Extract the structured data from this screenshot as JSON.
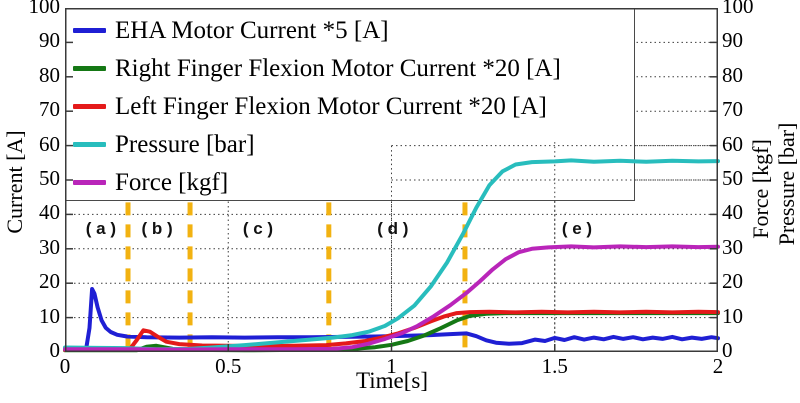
{
  "figure": {
    "background": "#ffffff"
  },
  "axes": {
    "left_title": "Current [A]",
    "right_title_force": "Force [kgf]",
    "right_title_pressure": "Pressure [bar]",
    "x_title": "Time[s]"
  },
  "chart_data": {
    "type": "line",
    "title": "",
    "xlabel": "Time[s]",
    "ylabel_left": "Current [A]",
    "ylabels_right": [
      "Force [kgf]",
      "Pressure [bar]"
    ],
    "xlim": [
      0,
      2
    ],
    "ylim": [
      0,
      100
    ],
    "x_ticks": [
      0,
      0.5,
      1,
      1.5,
      2
    ],
    "y_ticks": [
      0,
      10,
      20,
      30,
      40,
      50,
      60,
      70,
      80,
      90,
      100
    ],
    "grid": true,
    "grid_color": "#3d3d3d",
    "frame_color": "#3a3a3a",
    "legend_position": "upper-left",
    "series": [
      {
        "name": "EHA Motor Current *5 [A]",
        "color": "#1f1fd4",
        "points": [
          [
            0,
            0.6
          ],
          [
            0.05,
            0.6
          ],
          [
            0.065,
            1.0
          ],
          [
            0.075,
            7
          ],
          [
            0.083,
            18.3
          ],
          [
            0.09,
            17
          ],
          [
            0.1,
            13
          ],
          [
            0.112,
            9.2
          ],
          [
            0.125,
            7.0
          ],
          [
            0.14,
            5.8
          ],
          [
            0.16,
            5.0
          ],
          [
            0.19,
            4.5
          ],
          [
            0.25,
            4.3
          ],
          [
            0.35,
            4.2
          ],
          [
            0.45,
            4.3
          ],
          [
            0.55,
            4.2
          ],
          [
            0.65,
            4.3
          ],
          [
            0.75,
            4.3
          ],
          [
            0.85,
            4.4
          ],
          [
            0.95,
            4.5
          ],
          [
            1.05,
            4.7
          ],
          [
            1.12,
            4.9
          ],
          [
            1.18,
            5.2
          ],
          [
            1.23,
            5.4
          ],
          [
            1.26,
            4.6
          ],
          [
            1.29,
            3.4
          ],
          [
            1.32,
            2.7
          ],
          [
            1.36,
            2.4
          ],
          [
            1.4,
            2.6
          ],
          [
            1.44,
            3.6
          ],
          [
            1.47,
            3.2
          ],
          [
            1.5,
            4.1
          ],
          [
            1.53,
            3.5
          ],
          [
            1.56,
            4.3
          ],
          [
            1.59,
            3.6
          ],
          [
            1.62,
            4.2
          ],
          [
            1.65,
            3.7
          ],
          [
            1.68,
            4.4
          ],
          [
            1.71,
            3.8
          ],
          [
            1.74,
            4.3
          ],
          [
            1.77,
            3.7
          ],
          [
            1.8,
            4.2
          ],
          [
            1.83,
            3.8
          ],
          [
            1.86,
            4.4
          ],
          [
            1.89,
            3.7
          ],
          [
            1.92,
            4.2
          ],
          [
            1.95,
            3.8
          ],
          [
            1.98,
            4.3
          ],
          [
            2,
            4.0
          ]
        ]
      },
      {
        "name": "Right Finger Flexion Motor Current *20 [A]",
        "color": "#157815",
        "points": [
          [
            0,
            0.5
          ],
          [
            0.22,
            0.5
          ],
          [
            0.25,
            1.5
          ],
          [
            0.28,
            1.8
          ],
          [
            0.33,
            0.9
          ],
          [
            0.4,
            0.6
          ],
          [
            0.55,
            0.5
          ],
          [
            0.7,
            0.6
          ],
          [
            0.8,
            0.7
          ],
          [
            0.88,
            0.9
          ],
          [
            0.95,
            1.4
          ],
          [
            1.0,
            2.1
          ],
          [
            1.05,
            3.2
          ],
          [
            1.1,
            4.8
          ],
          [
            1.15,
            6.9
          ],
          [
            1.2,
            9.2
          ],
          [
            1.24,
            10.5
          ],
          [
            1.29,
            11.1
          ],
          [
            1.35,
            11.3
          ],
          [
            1.5,
            11.3
          ],
          [
            1.7,
            11.3
          ],
          [
            2,
            11.3
          ]
        ]
      },
      {
        "name": "Left Finger Flexion Motor Current *20 [A]",
        "color": "#e41a1a",
        "points": [
          [
            0,
            0.6
          ],
          [
            0.18,
            0.6
          ],
          [
            0.2,
            1.0
          ],
          [
            0.22,
            3.5
          ],
          [
            0.24,
            6.3
          ],
          [
            0.26,
            5.9
          ],
          [
            0.285,
            4.4
          ],
          [
            0.31,
            3.0
          ],
          [
            0.35,
            2.3
          ],
          [
            0.42,
            1.9
          ],
          [
            0.5,
            1.8
          ],
          [
            0.6,
            1.7
          ],
          [
            0.7,
            1.8
          ],
          [
            0.8,
            2.0
          ],
          [
            0.86,
            2.5
          ],
          [
            0.92,
            3.2
          ],
          [
            0.97,
            4.2
          ],
          [
            1.02,
            5.4
          ],
          [
            1.07,
            7.0
          ],
          [
            1.12,
            8.9
          ],
          [
            1.16,
            10.3
          ],
          [
            1.2,
            11.3
          ],
          [
            1.24,
            11.6
          ],
          [
            1.3,
            11.7
          ],
          [
            1.38,
            11.5
          ],
          [
            1.46,
            11.7
          ],
          [
            1.54,
            11.5
          ],
          [
            1.62,
            11.7
          ],
          [
            1.7,
            11.5
          ],
          [
            1.78,
            11.7
          ],
          [
            1.86,
            11.5
          ],
          [
            1.94,
            11.7
          ],
          [
            2,
            11.6
          ]
        ]
      },
      {
        "name": "Pressure [bar]",
        "color": "#28bdbd",
        "points": [
          [
            0,
            1.3
          ],
          [
            0.1,
            1.2
          ],
          [
            0.2,
            1.1
          ],
          [
            0.28,
            0.8
          ],
          [
            0.38,
            0.9
          ],
          [
            0.45,
            1.3
          ],
          [
            0.55,
            2.0
          ],
          [
            0.65,
            2.8
          ],
          [
            0.75,
            3.6
          ],
          [
            0.82,
            4.2
          ],
          [
            0.88,
            4.9
          ],
          [
            0.93,
            5.9
          ],
          [
            0.98,
            7.6
          ],
          [
            1.02,
            9.8
          ],
          [
            1.07,
            13.5
          ],
          [
            1.12,
            19
          ],
          [
            1.17,
            26
          ],
          [
            1.22,
            34.5
          ],
          [
            1.26,
            42
          ],
          [
            1.3,
            48.5
          ],
          [
            1.34,
            52.5
          ],
          [
            1.38,
            54.5
          ],
          [
            1.43,
            55.2
          ],
          [
            1.5,
            55.4
          ],
          [
            1.55,
            55.7
          ],
          [
            1.62,
            55.3
          ],
          [
            1.7,
            55.6
          ],
          [
            1.78,
            55.3
          ],
          [
            1.86,
            55.6
          ],
          [
            1.94,
            55.4
          ],
          [
            2,
            55.5
          ]
        ]
      },
      {
        "name": "Force [kgf]",
        "color": "#b925b9",
        "points": [
          [
            0,
            0.8
          ],
          [
            0.2,
            0.8
          ],
          [
            0.35,
            0.7
          ],
          [
            0.5,
            0.8
          ],
          [
            0.7,
            0.8
          ],
          [
            0.82,
            0.9
          ],
          [
            0.88,
            1.4
          ],
          [
            0.93,
            2.4
          ],
          [
            0.98,
            3.8
          ],
          [
            1.03,
            5.4
          ],
          [
            1.08,
            7.6
          ],
          [
            1.13,
            10.4
          ],
          [
            1.18,
            13.6
          ],
          [
            1.23,
            17.2
          ],
          [
            1.27,
            20.5
          ],
          [
            1.31,
            24
          ],
          [
            1.35,
            27
          ],
          [
            1.39,
            29
          ],
          [
            1.43,
            30
          ],
          [
            1.48,
            30.4
          ],
          [
            1.55,
            30.7
          ],
          [
            1.62,
            30.4
          ],
          [
            1.7,
            30.7
          ],
          [
            1.78,
            30.5
          ],
          [
            1.86,
            30.7
          ],
          [
            1.94,
            30.5
          ],
          [
            2,
            30.6
          ]
        ]
      }
    ],
    "dividers": {
      "times": [
        0.193,
        0.383,
        0.808,
        1.225
      ],
      "v_range": [
        0,
        43.5
      ],
      "color": "#f2b211"
    },
    "region_labels": [
      {
        "text": "( a )",
        "t": 0.11,
        "v": 35.5
      },
      {
        "text": "( b )",
        "t": 0.282,
        "v": 35.5
      },
      {
        "text": "( c )",
        "t": 0.591,
        "v": 35.5
      },
      {
        "text": "( d )",
        "t": 1.004,
        "v": 35.5
      },
      {
        "text": "( e )",
        "t": 1.568,
        "v": 35.5
      }
    ],
    "grid_overlay": {
      "h": [
        {
          "v": 50,
          "t_range": [
            1,
            2
          ]
        },
        {
          "v": 60,
          "t_range": [
            1,
            2
          ]
        }
      ],
      "v": [
        {
          "t": 1.0,
          "v_range": [
            0,
            60
          ]
        },
        {
          "t": 1.5,
          "v_range": [
            0,
            61
          ]
        }
      ]
    }
  }
}
